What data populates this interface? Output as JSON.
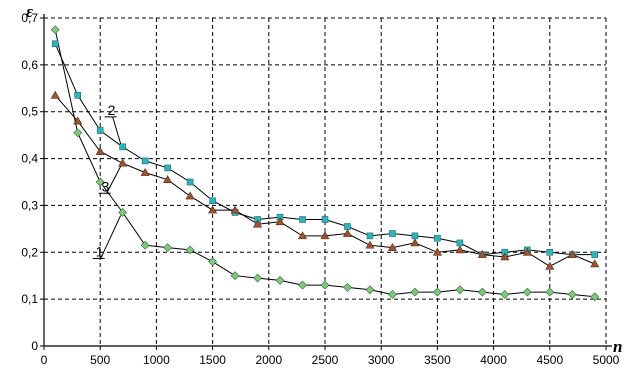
{
  "chart_data": {
    "type": "line",
    "title": "",
    "xlabel": "n",
    "ylabel": "ε",
    "xlim": [
      0,
      5000
    ],
    "ylim": [
      0,
      0.7
    ],
    "grid": true,
    "x_ticks": [
      0,
      500,
      1000,
      1500,
      2000,
      2500,
      3000,
      3500,
      4000,
      4500,
      5000
    ],
    "y_ticks": [
      "0",
      "0,1",
      "0,2",
      "0,3",
      "0,4",
      "0,5",
      "0,6",
      "0,7"
    ],
    "y_tick_values": [
      0,
      0.1,
      0.2,
      0.3,
      0.4,
      0.5,
      0.6,
      0.7
    ],
    "x": [
      100,
      300,
      500,
      700,
      900,
      1100,
      1300,
      1500,
      1700,
      1900,
      2100,
      2300,
      2500,
      2700,
      2900,
      3100,
      3300,
      3500,
      3700,
      3900,
      4100,
      4300,
      4500,
      4700,
      4900
    ],
    "series": [
      {
        "label": "1",
        "marker": "diamond",
        "color": "#7fc97f",
        "values": [
          0.675,
          0.455,
          0.35,
          0.285,
          0.215,
          0.21,
          0.205,
          0.18,
          0.15,
          0.145,
          0.14,
          0.13,
          0.13,
          0.125,
          0.12,
          0.11,
          0.115,
          0.115,
          0.12,
          0.115,
          0.11,
          0.115,
          0.115,
          0.11,
          0.105
        ]
      },
      {
        "label": "2",
        "marker": "square",
        "color": "#2cb5bf",
        "values": [
          0.645,
          0.535,
          0.46,
          0.425,
          0.395,
          0.38,
          0.35,
          0.31,
          0.285,
          0.27,
          0.275,
          0.27,
          0.27,
          0.255,
          0.235,
          0.24,
          0.235,
          0.23,
          0.22,
          0.195,
          0.2,
          0.205,
          0.2,
          0.195,
          0.195
        ]
      },
      {
        "label": "3",
        "marker": "triangle",
        "color": "#a0522d",
        "values": [
          0.535,
          0.48,
          0.415,
          0.39,
          0.37,
          0.355,
          0.32,
          0.29,
          0.29,
          0.26,
          0.265,
          0.235,
          0.235,
          0.24,
          0.215,
          0.21,
          0.22,
          0.2,
          0.205,
          0.195,
          0.19,
          0.2,
          0.17,
          0.195,
          0.175
        ]
      }
    ],
    "annotations": [
      {
        "text": "1",
        "series": 0,
        "at_x": 700
      },
      {
        "text": "2",
        "series": 1,
        "at_x": 700
      },
      {
        "text": "3",
        "series": 2,
        "at_x": 700
      }
    ]
  }
}
